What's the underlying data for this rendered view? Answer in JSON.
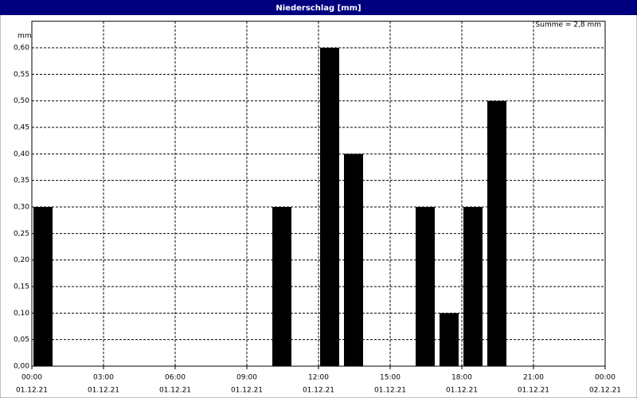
{
  "chart_data": {
    "type": "bar",
    "title": "Niederschlag [mm]",
    "y_label": "mm",
    "annotation": "Summe = 2,8 mm",
    "x": [
      0,
      10,
      12,
      13,
      16,
      17,
      18,
      19
    ],
    "values": [
      0.3,
      0.3,
      0.6,
      0.4,
      0.3,
      0.1,
      0.3,
      0.5
    ],
    "color": "#000000",
    "xlim": [
      0,
      24
    ],
    "xticks": [
      {
        "value": 0,
        "label": [
          "00:00",
          "01.12.21"
        ]
      },
      {
        "value": 3,
        "label": [
          "03:00",
          "01.12.21"
        ]
      },
      {
        "value": 6,
        "label": [
          "06:00",
          "01.12.21"
        ]
      },
      {
        "value": 9,
        "label": [
          "09:00",
          "01.12.21"
        ]
      },
      {
        "value": 12,
        "label": [
          "12:00",
          "01.12.21"
        ]
      },
      {
        "value": 15,
        "label": [
          "15:00",
          "01.12.21"
        ]
      },
      {
        "value": 18,
        "label": [
          "18:00",
          "01.12.21"
        ]
      },
      {
        "value": 21,
        "label": [
          "21:00",
          "01.12.21"
        ]
      },
      {
        "value": 24,
        "label": [
          "00:00",
          "02.12.21"
        ]
      }
    ],
    "ylim": [
      0,
      0.65
    ],
    "yticks": [
      {
        "value": 0,
        "label": "0,00"
      },
      {
        "value": 0.05,
        "label": "0,05"
      },
      {
        "value": 0.1,
        "label": "0,10"
      },
      {
        "value": 0.15,
        "label": "0,15"
      },
      {
        "value": 0.2,
        "label": "0,20"
      },
      {
        "value": 0.25,
        "label": "0,25"
      },
      {
        "value": 0.3,
        "label": "0,30"
      },
      {
        "value": 0.35,
        "label": "0,35"
      },
      {
        "value": 0.4,
        "label": "0,40"
      },
      {
        "value": 0.45,
        "label": "0,45"
      },
      {
        "value": 0.5,
        "label": "0,50"
      },
      {
        "value": 0.55,
        "label": "0,55"
      },
      {
        "value": 0.6,
        "label": "0,60"
      }
    ],
    "grid": true
  }
}
